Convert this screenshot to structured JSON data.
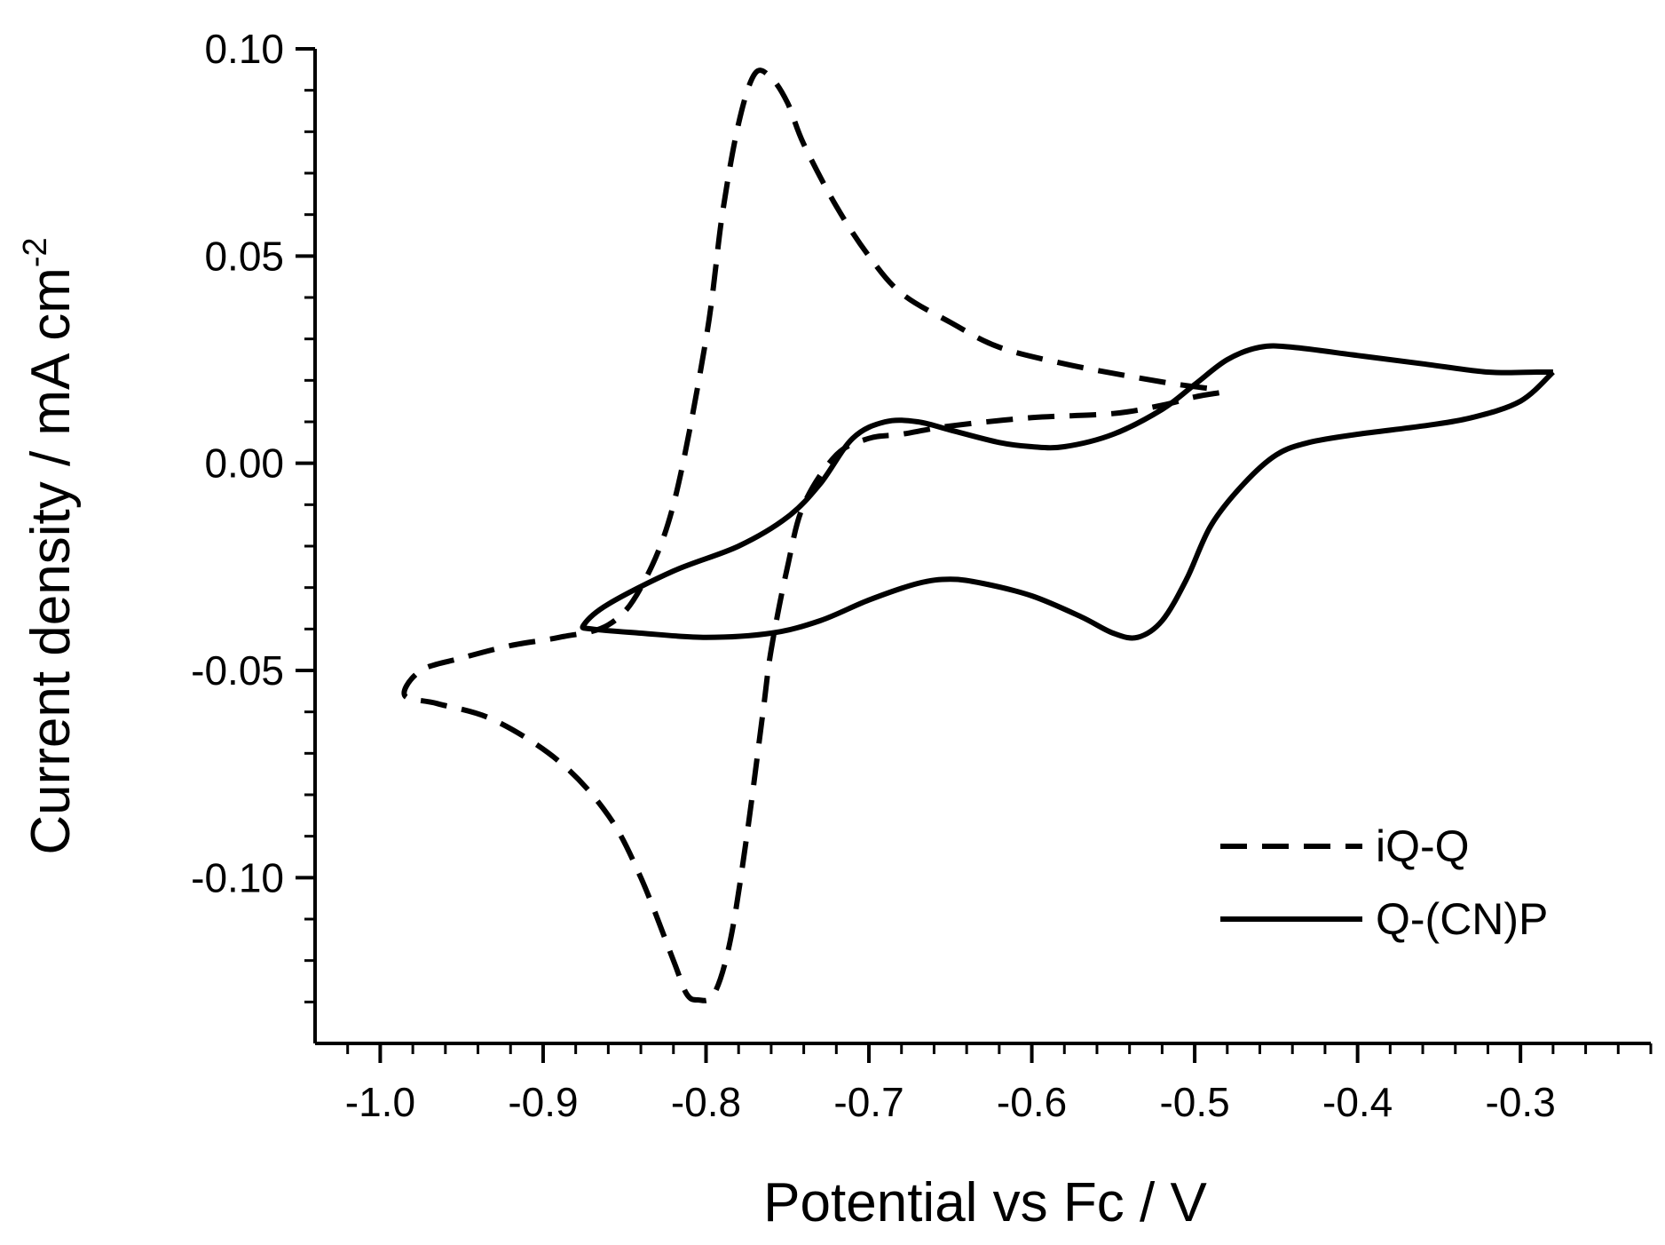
{
  "chart_data": {
    "type": "line",
    "title": "",
    "xlabel": "Potential vs Fc / V",
    "ylabel_main": "Current density / mA cm",
    "ylabel_superscript": "-2",
    "xlim": [
      -1.04,
      -0.22
    ],
    "ylim": [
      -0.14,
      0.1
    ],
    "x_ticks": [
      -1.0,
      -0.9,
      -0.8,
      -0.7,
      -0.6,
      -0.5,
      -0.4,
      -0.3
    ],
    "x_tick_labels": [
      "-1.0",
      "-0.9",
      "-0.8",
      "-0.7",
      "-0.6",
      "-0.5",
      "-0.4",
      "-0.3"
    ],
    "y_ticks": [
      0.1,
      0.05,
      0.0,
      -0.05,
      -0.1
    ],
    "y_tick_labels": [
      "0.10",
      "0.05",
      "0.00",
      "-0.05",
      "-0.10"
    ],
    "grid": false,
    "legend_position": "bottom-right",
    "series": [
      {
        "name": "iQ-Q",
        "style": "dashed",
        "color": "#000000",
        "points": [
          [
            -0.485,
            0.017
          ],
          [
            -0.5,
            0.016
          ],
          [
            -0.52,
            0.014
          ],
          [
            -0.55,
            0.012
          ],
          [
            -0.6,
            0.011
          ],
          [
            -0.65,
            0.009
          ],
          [
            -0.68,
            0.007
          ],
          [
            -0.7,
            0.006
          ],
          [
            -0.72,
            0.002
          ],
          [
            -0.74,
            -0.01
          ],
          [
            -0.75,
            -0.025
          ],
          [
            -0.76,
            -0.045
          ],
          [
            -0.765,
            -0.06
          ],
          [
            -0.775,
            -0.09
          ],
          [
            -0.785,
            -0.115
          ],
          [
            -0.795,
            -0.128
          ],
          [
            -0.805,
            -0.1295
          ],
          [
            -0.812,
            -0.128
          ],
          [
            -0.82,
            -0.12
          ],
          [
            -0.84,
            -0.1
          ],
          [
            -0.86,
            -0.085
          ],
          [
            -0.89,
            -0.072
          ],
          [
            -0.93,
            -0.062
          ],
          [
            -0.965,
            -0.058
          ],
          [
            -0.985,
            -0.056
          ],
          [
            -0.975,
            -0.05
          ],
          [
            -0.95,
            -0.047
          ],
          [
            -0.92,
            -0.044
          ],
          [
            -0.89,
            -0.042
          ],
          [
            -0.86,
            -0.039
          ],
          [
            -0.84,
            -0.03
          ],
          [
            -0.82,
            -0.01
          ],
          [
            -0.8,
            0.03
          ],
          [
            -0.79,
            0.06
          ],
          [
            -0.78,
            0.082
          ],
          [
            -0.77,
            0.094
          ],
          [
            -0.76,
            0.093
          ],
          [
            -0.75,
            0.087
          ],
          [
            -0.74,
            0.077
          ],
          [
            -0.72,
            0.062
          ],
          [
            -0.7,
            0.05
          ],
          [
            -0.68,
            0.041
          ],
          [
            -0.65,
            0.034
          ],
          [
            -0.62,
            0.028
          ],
          [
            -0.58,
            0.024
          ],
          [
            -0.54,
            0.021
          ],
          [
            -0.51,
            0.019
          ],
          [
            -0.49,
            0.018
          ]
        ]
      },
      {
        "name": "Q-(CN)P",
        "style": "solid",
        "color": "#000000",
        "points": [
          [
            -0.28,
            0.022
          ],
          [
            -0.3,
            0.015
          ],
          [
            -0.33,
            0.011
          ],
          [
            -0.36,
            0.009
          ],
          [
            -0.4,
            0.007
          ],
          [
            -0.43,
            0.005
          ],
          [
            -0.45,
            0.002
          ],
          [
            -0.47,
            -0.005
          ],
          [
            -0.49,
            -0.015
          ],
          [
            -0.505,
            -0.028
          ],
          [
            -0.52,
            -0.038
          ],
          [
            -0.535,
            -0.042
          ],
          [
            -0.55,
            -0.041
          ],
          [
            -0.57,
            -0.037
          ],
          [
            -0.6,
            -0.032
          ],
          [
            -0.63,
            -0.029
          ],
          [
            -0.65,
            -0.028
          ],
          [
            -0.67,
            -0.029
          ],
          [
            -0.7,
            -0.033
          ],
          [
            -0.73,
            -0.038
          ],
          [
            -0.76,
            -0.041
          ],
          [
            -0.8,
            -0.042
          ],
          [
            -0.84,
            -0.041
          ],
          [
            -0.87,
            -0.04
          ],
          [
            -0.875,
            -0.039
          ],
          [
            -0.86,
            -0.034
          ],
          [
            -0.82,
            -0.026
          ],
          [
            -0.78,
            -0.02
          ],
          [
            -0.75,
            -0.013
          ],
          [
            -0.73,
            -0.005
          ],
          [
            -0.71,
            0.006
          ],
          [
            -0.69,
            0.01
          ],
          [
            -0.67,
            0.01
          ],
          [
            -0.65,
            0.008
          ],
          [
            -0.62,
            0.005
          ],
          [
            -0.6,
            0.004
          ],
          [
            -0.58,
            0.004
          ],
          [
            -0.55,
            0.007
          ],
          [
            -0.52,
            0.013
          ],
          [
            -0.5,
            0.019
          ],
          [
            -0.48,
            0.025
          ],
          [
            -0.46,
            0.028
          ],
          [
            -0.44,
            0.028
          ],
          [
            -0.4,
            0.026
          ],
          [
            -0.36,
            0.024
          ],
          [
            -0.32,
            0.022
          ],
          [
            -0.29,
            0.022
          ],
          [
            -0.28,
            0.022
          ]
        ]
      }
    ]
  }
}
